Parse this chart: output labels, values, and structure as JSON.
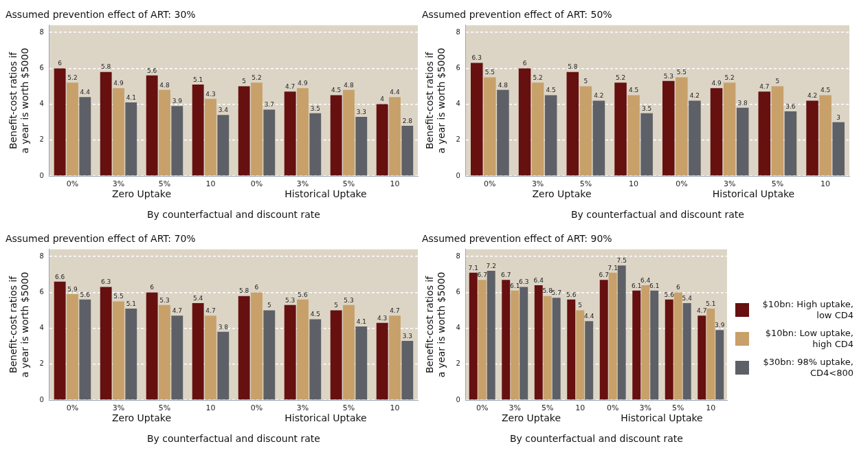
{
  "chart_data": [
    {
      "type": "bar",
      "title": "Assumed prevention effect of ART: 30%",
      "xlabel": "By counterfactual and discount rate",
      "ylabel": "Benefit-cost ratios if a year is worth $5000",
      "categories": [
        "0%",
        "3%",
        "5%",
        "10",
        "0%",
        "3%",
        "5%",
        "10"
      ],
      "annotations": [
        "Zero Uptake",
        "Historical Uptake"
      ],
      "ylim": [
        0,
        8.4
      ],
      "yticks": [
        0,
        2,
        4,
        6,
        8
      ],
      "grid": "y",
      "data_labels": true,
      "series": [
        {
          "color": "#661010",
          "values": [
            6,
            5.8,
            5.6,
            5.1,
            5,
            4.7,
            4.5,
            4
          ]
        },
        {
          "color": "#c8a06a",
          "values": [
            5.2,
            4.9,
            4.8,
            4.3,
            5.2,
            4.9,
            4.8,
            4.4
          ]
        },
        {
          "color": "#5d6066",
          "values": [
            4.4,
            4.1,
            3.9,
            3.4,
            3.7,
            3.5,
            3.3,
            2.8
          ]
        }
      ]
    },
    {
      "type": "bar",
      "title": "Assumed prevention effect of ART: 50%",
      "xlabel": "By counterfactual and discount rate",
      "ylabel": "Benefit-cost ratios if a year is worth $5000",
      "categories": [
        "0%",
        "3%",
        "5%",
        "10",
        "0%",
        "3%",
        "5%",
        "10"
      ],
      "annotations": [
        "Zero Uptake",
        "Historical Uptake"
      ],
      "ylim": [
        0,
        8.4
      ],
      "yticks": [
        0,
        2,
        4,
        6,
        8
      ],
      "grid": "y",
      "data_labels": true,
      "series": [
        {
          "color": "#661010",
          "values": [
            6.3,
            6,
            5.8,
            5.2,
            5.3,
            4.9,
            4.7,
            4.2
          ]
        },
        {
          "color": "#c8a06a",
          "values": [
            5.5,
            5.2,
            5,
            4.5,
            5.5,
            5.2,
            5,
            4.5
          ]
        },
        {
          "color": "#5d6066",
          "values": [
            4.8,
            4.5,
            4.2,
            3.5,
            4.2,
            3.8,
            3.6,
            3
          ]
        }
      ]
    },
    {
      "type": "bar",
      "title": "Assumed prevention effect of ART: 70%",
      "xlabel": "By counterfactual and discount rate",
      "ylabel": "Benefit-cost ratios if a year is worth $5000",
      "categories": [
        "0%",
        "3%",
        "5%",
        "10",
        "0%",
        "3%",
        "5%",
        "10"
      ],
      "annotations": [
        "Zero Uptake",
        "Historical Uptake"
      ],
      "ylim": [
        0,
        8.4
      ],
      "yticks": [
        0,
        2,
        4,
        6,
        8
      ],
      "grid": "y",
      "data_labels": true,
      "series": [
        {
          "color": "#661010",
          "values": [
            6.6,
            6.3,
            6,
            5.4,
            5.8,
            5.3,
            5,
            4.3
          ]
        },
        {
          "color": "#c8a06a",
          "values": [
            5.9,
            5.5,
            5.3,
            4.7,
            6,
            5.6,
            5.3,
            4.7
          ]
        },
        {
          "color": "#5d6066",
          "values": [
            5.6,
            5.1,
            4.7,
            3.8,
            5,
            4.5,
            4.1,
            3.3
          ]
        }
      ]
    },
    {
      "type": "bar",
      "title": "Assumed prevention effect of ART: 90%",
      "xlabel": "By counterfactual and discount rate",
      "ylabel": "Benefit-cost ratios if a year is worth $5000",
      "categories": [
        "0%",
        "3%",
        "5%",
        "10",
        "0%",
        "3%",
        "5%",
        "10"
      ],
      "annotations": [
        "Zero Uptake",
        "Historical Uptake"
      ],
      "ylim": [
        0,
        8.4
      ],
      "yticks": [
        0,
        2,
        4,
        6,
        8
      ],
      "grid": "y",
      "data_labels": true,
      "legend": "right",
      "series": [
        {
          "name": "$10bn: High uptake, low CD4",
          "color": "#661010",
          "values": [
            7.1,
            6.7,
            6.4,
            5.6,
            6.7,
            6.1,
            5.6,
            4.7
          ]
        },
        {
          "name": "$10bn: Low uptake, high CD4",
          "color": "#c8a06a",
          "values": [
            6.7,
            6.1,
            5.8,
            5,
            7.1,
            6.4,
            6,
            5.1
          ]
        },
        {
          "name": "$30bn: 98% uptake, CD4<800",
          "color": "#5d6066",
          "values": [
            7.2,
            6.3,
            5.7,
            4.4,
            7.5,
            6.1,
            5.4,
            3.9
          ]
        }
      ]
    }
  ]
}
